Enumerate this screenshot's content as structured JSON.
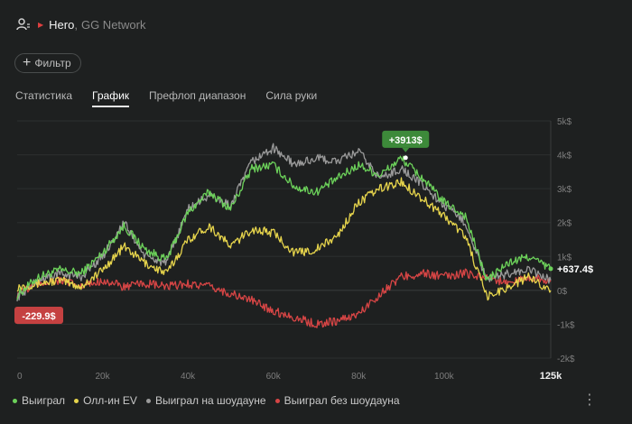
{
  "header": {
    "player": "Hero",
    "separator": ",",
    "network": "GG Network"
  },
  "filter": {
    "label": "Фильтр"
  },
  "tabs": [
    {
      "label": "Статистика",
      "active": false
    },
    {
      "label": "График",
      "active": true
    },
    {
      "label": "Префлоп диапазон",
      "active": false
    },
    {
      "label": "Сила руки",
      "active": false
    }
  ],
  "chart_data": {
    "type": "line",
    "xlabel": "",
    "ylabel": "",
    "xlim": [
      0,
      125000
    ],
    "ylim": [
      -2000,
      5000
    ],
    "x_ticks": [
      "0",
      "20k",
      "40k",
      "60k",
      "80k",
      "100k",
      "125k"
    ],
    "y_ticks": [
      "5k$",
      "4k$",
      "3k$",
      "2k$",
      "1k$",
      "0$",
      "-1k$",
      "-2k$"
    ],
    "grid": true,
    "legend": "bottom-left",
    "annotations": {
      "max_label": "+3913$",
      "min_label": "-229.9$",
      "end_label": "+637.4$"
    },
    "series": [
      {
        "name": "Выиграл",
        "color": "#6cd15a",
        "x": [
          0,
          5000,
          10000,
          15000,
          20000,
          25000,
          30000,
          35000,
          40000,
          45000,
          50000,
          55000,
          60000,
          65000,
          70000,
          75000,
          80000,
          85000,
          90000,
          95000,
          100000,
          105000,
          110000,
          115000,
          120000,
          125000
        ],
        "y": [
          -150,
          400,
          600,
          500,
          1100,
          1900,
          1200,
          900,
          2300,
          2900,
          2400,
          3600,
          3700,
          3050,
          2900,
          3300,
          3700,
          3400,
          3900,
          3300,
          2600,
          2200,
          300,
          800,
          1000,
          637
        ]
      },
      {
        "name": "Олл-ин EV",
        "color": "#e6d44c",
        "x": [
          0,
          5000,
          10000,
          15000,
          20000,
          25000,
          30000,
          35000,
          40000,
          45000,
          50000,
          55000,
          60000,
          65000,
          70000,
          75000,
          80000,
          85000,
          90000,
          95000,
          100000,
          105000,
          110000,
          115000,
          120000,
          125000
        ],
        "y": [
          100,
          200,
          300,
          100,
          600,
          1300,
          800,
          500,
          1500,
          1900,
          1300,
          1800,
          1700,
          1100,
          1200,
          1600,
          2600,
          3000,
          3200,
          2700,
          2200,
          1600,
          -200,
          100,
          400,
          0
        ]
      },
      {
        "name": "Выиграл на шоудауне",
        "color": "#9a9a9a",
        "x": [
          0,
          5000,
          10000,
          15000,
          20000,
          25000,
          30000,
          35000,
          40000,
          45000,
          50000,
          55000,
          60000,
          65000,
          70000,
          75000,
          80000,
          85000,
          90000,
          95000,
          100000,
          105000,
          110000,
          115000,
          120000,
          125000
        ],
        "y": [
          -200,
          300,
          500,
          400,
          1000,
          2000,
          1000,
          800,
          2400,
          2800,
          2500,
          3800,
          4200,
          3700,
          3900,
          3800,
          4100,
          3300,
          3600,
          3100,
          2500,
          2000,
          300,
          500,
          600,
          300
        ]
      },
      {
        "name": "Выиграл без шоудауна",
        "color": "#d64545",
        "x": [
          0,
          5000,
          10000,
          15000,
          20000,
          25000,
          30000,
          35000,
          40000,
          45000,
          50000,
          55000,
          60000,
          65000,
          70000,
          75000,
          80000,
          85000,
          90000,
          95000,
          100000,
          105000,
          110000,
          115000,
          120000,
          125000
        ],
        "y": [
          -100,
          200,
          300,
          100,
          300,
          100,
          200,
          100,
          200,
          100,
          -100,
          -300,
          -600,
          -800,
          -1000,
          -900,
          -700,
          -100,
          400,
          500,
          400,
          500,
          400,
          200,
          400,
          300
        ]
      }
    ]
  }
}
